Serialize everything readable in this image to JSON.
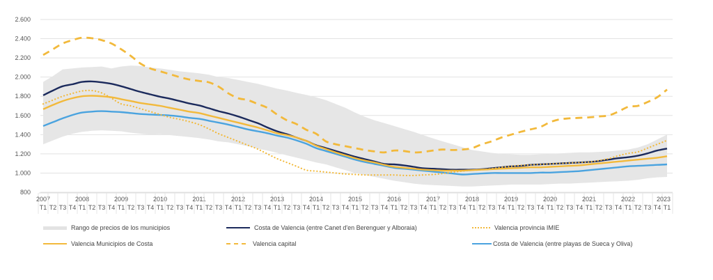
{
  "chart_data": {
    "type": "line",
    "title": "",
    "xlabel": "",
    "ylabel": "",
    "ylim": [
      800,
      2600
    ],
    "yticks": [
      "2.600",
      "2.400",
      "2.200",
      "2.000",
      "1.800",
      "1.600",
      "1.400",
      "1.200",
      "1.000",
      "800"
    ],
    "ytick_values": [
      2600,
      2400,
      2200,
      2000,
      1800,
      1600,
      1400,
      1200,
      1000,
      800
    ],
    "grid": true,
    "years": [
      "2007",
      "2008",
      "2009",
      "2010",
      "2011",
      "2012",
      "2013",
      "2014",
      "2015",
      "2016",
      "2017",
      "2018",
      "2019",
      "2020",
      "2021",
      "2022",
      "2023"
    ],
    "quarter_labels": [
      "T1",
      "T2",
      "T3",
      "T4"
    ],
    "x_start": "2007 T1",
    "x_end": "2023 T1",
    "band": {
      "name": "Rango de precios de los municipios",
      "color": "#e6e6e6",
      "upper": [
        1950,
        2010,
        2080,
        2090,
        2100,
        2105,
        2110,
        2090,
        2110,
        2120,
        2115,
        2100,
        2090,
        2075,
        2060,
        2050,
        2040,
        2025,
        2000,
        1990,
        1970,
        1950,
        1930,
        1905,
        1880,
        1860,
        1835,
        1815,
        1790,
        1760,
        1720,
        1680,
        1630,
        1585,
        1550,
        1520,
        1490,
        1460,
        1430,
        1395,
        1360,
        1330,
        1300,
        1270,
        1240,
        1225,
        1210,
        1200,
        1195,
        1190,
        1190,
        1195,
        1200,
        1205,
        1210,
        1215,
        1215,
        1220,
        1225,
        1235,
        1245,
        1265,
        1300,
        1350,
        1400
      ],
      "lower": [
        1300,
        1340,
        1380,
        1410,
        1430,
        1440,
        1445,
        1440,
        1435,
        1420,
        1410,
        1400,
        1405,
        1395,
        1385,
        1375,
        1365,
        1350,
        1330,
        1320,
        1300,
        1280,
        1255,
        1235,
        1210,
        1185,
        1160,
        1135,
        1110,
        1090,
        1060,
        1030,
        1000,
        980,
        960,
        940,
        920,
        905,
        890,
        880,
        875,
        870,
        865,
        860,
        860,
        865,
        870,
        875,
        880,
        880,
        880,
        880,
        885,
        890,
        890,
        895,
        900,
        905,
        910,
        915,
        920,
        930,
        945,
        955,
        960
      ]
    },
    "series": [
      {
        "name": "Costa de Valencia (entre Canet d'en Berenguer y Alboraia)",
        "color": "#1b2a5c",
        "style": "solid",
        "values": [
          1810,
          1860,
          1905,
          1925,
          1950,
          1955,
          1945,
          1930,
          1905,
          1875,
          1845,
          1820,
          1795,
          1775,
          1750,
          1725,
          1705,
          1675,
          1645,
          1620,
          1590,
          1555,
          1520,
          1475,
          1435,
          1405,
          1370,
          1335,
          1290,
          1260,
          1230,
          1200,
          1170,
          1145,
          1120,
          1095,
          1090,
          1080,
          1065,
          1050,
          1045,
          1040,
          1035,
          1035,
          1035,
          1040,
          1050,
          1060,
          1070,
          1075,
          1085,
          1090,
          1095,
          1100,
          1105,
          1110,
          1115,
          1125,
          1140,
          1155,
          1165,
          1180,
          1205,
          1235,
          1255
        ]
      },
      {
        "name": "Valencia provincia IMIE",
        "color": "#f2b93b",
        "style": "dotted",
        "values": [
          1720,
          1760,
          1800,
          1830,
          1855,
          1860,
          1835,
          1780,
          1720,
          1700,
          1670,
          1640,
          1610,
          1580,
          1560,
          1535,
          1505,
          1460,
          1410,
          1370,
          1330,
          1290,
          1250,
          1200,
          1150,
          1110,
          1070,
          1030,
          1020,
          1010,
          1000,
          990,
          985,
          980,
          980,
          980,
          980,
          975,
          975,
          980,
          985,
          995,
          1010,
          1020,
          1030,
          1035,
          1045,
          1060,
          1070,
          1080,
          1085,
          1090,
          1095,
          1100,
          1105,
          1110,
          1115,
          1130,
          1150,
          1180,
          1205,
          1220,
          1260,
          1300,
          1340
        ]
      },
      {
        "name": "Valencia Municipios de Costa",
        "color": "#f2b93b",
        "style": "solid",
        "values": [
          1665,
          1710,
          1750,
          1780,
          1800,
          1805,
          1800,
          1790,
          1770,
          1750,
          1730,
          1715,
          1700,
          1680,
          1660,
          1640,
          1625,
          1600,
          1575,
          1550,
          1525,
          1500,
          1475,
          1445,
          1415,
          1395,
          1370,
          1335,
          1285,
          1250,
          1215,
          1185,
          1155,
          1130,
          1110,
          1085,
          1065,
          1055,
          1045,
          1035,
          1030,
          1025,
          1025,
          1025,
          1030,
          1035,
          1040,
          1045,
          1050,
          1055,
          1060,
          1060,
          1065,
          1070,
          1075,
          1080,
          1090,
          1100,
          1110,
          1120,
          1130,
          1140,
          1150,
          1160,
          1175
        ]
      },
      {
        "name": "Valencia capital",
        "color": "#f2b93b",
        "style": "dashed",
        "values": [
          2230,
          2290,
          2350,
          2385,
          2410,
          2405,
          2385,
          2350,
          2290,
          2220,
          2140,
          2090,
          2060,
          2030,
          2000,
          1975,
          1960,
          1945,
          1900,
          1830,
          1780,
          1760,
          1720,
          1680,
          1610,
          1550,
          1510,
          1450,
          1410,
          1330,
          1300,
          1280,
          1260,
          1240,
          1225,
          1215,
          1235,
          1230,
          1215,
          1220,
          1235,
          1245,
          1240,
          1245,
          1260,
          1300,
          1330,
          1370,
          1400,
          1430,
          1455,
          1480,
          1530,
          1560,
          1570,
          1575,
          1580,
          1590,
          1600,
          1640,
          1690,
          1700,
          1740,
          1790,
          1870
        ]
      },
      {
        "name": "Costa de Valencia (entre playas de Sueca y Oliva)",
        "color": "#4aa3df",
        "style": "solid",
        "values": [
          1490,
          1530,
          1570,
          1605,
          1630,
          1640,
          1645,
          1640,
          1635,
          1625,
          1615,
          1610,
          1605,
          1600,
          1590,
          1575,
          1565,
          1545,
          1525,
          1505,
          1480,
          1455,
          1435,
          1415,
          1390,
          1370,
          1340,
          1305,
          1260,
          1230,
          1200,
          1170,
          1140,
          1115,
          1095,
          1075,
          1055,
          1045,
          1035,
          1025,
          1015,
          1005,
          995,
          985,
          990,
          995,
          1000,
          1000,
          1000,
          1000,
          1000,
          1005,
          1005,
          1010,
          1015,
          1020,
          1030,
          1040,
          1050,
          1060,
          1070,
          1075,
          1080,
          1085,
          1090
        ]
      }
    ],
    "legend": [
      {
        "label": "Rango de precios de los municipios",
        "kind": "band",
        "color": "#e6e6e6"
      },
      {
        "label": "Costa de Valencia (entre Canet d'en Berenguer y Alboraia)",
        "kind": "solid",
        "color": "#1b2a5c"
      },
      {
        "label": "Valencia provincia IMIE",
        "kind": "dotted",
        "color": "#f2b93b"
      },
      {
        "label": "Valencia Municipios de Costa",
        "kind": "solid",
        "color": "#f2b93b"
      },
      {
        "label": "Valencia capital",
        "kind": "dashed",
        "color": "#f2b93b"
      },
      {
        "label": "Costa de Valencia (entre playas de Sueca y Oliva)",
        "kind": "solid",
        "color": "#4aa3df"
      }
    ],
    "legend_position": "bottom"
  }
}
